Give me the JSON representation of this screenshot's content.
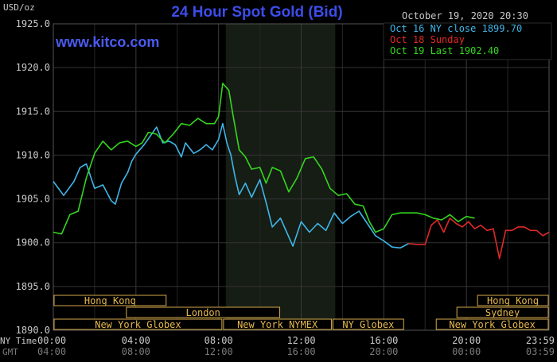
{
  "chart_data": {
    "type": "line",
    "title": "24 Hour Spot Gold (Bid)",
    "watermark": "www.kitco.com",
    "y_unit_label": "USD/oz",
    "date_label": "October 19, 2020 20:30",
    "ylim": [
      1890,
      1925
    ],
    "y_ticks": [
      "1925.0",
      "1920.0",
      "1915.0",
      "1910.0",
      "1905.0",
      "1900.0",
      "1895.0",
      "1890.0"
    ],
    "y_tick_values": [
      1925,
      1920,
      1915,
      1910,
      1905,
      1900,
      1895,
      1890
    ],
    "x_range_hours": [
      0,
      24
    ],
    "x_ticks_ny": [
      "00:00",
      "04:00",
      "08:00",
      "12:00",
      "16:00",
      "20:00",
      "23:59"
    ],
    "x_ticks_gmt": [
      "04:00",
      "08:00",
      "12:00",
      "16:00",
      "20:00",
      "00:00",
      "03:59"
    ],
    "x_tick_hours": [
      0,
      4,
      8,
      12,
      16,
      20,
      24
    ],
    "ny_time_label": "NY Time",
    "gmt_label": "GMT",
    "grid": true,
    "legend_position": "top-right",
    "highlight_hours": [
      8.35,
      13.65
    ],
    "sessions": [
      {
        "label": "Hong Kong",
        "start_hour": 0,
        "end_hour": 5.5,
        "row": 1
      },
      {
        "label": "London",
        "start_hour": 3.5,
        "end_hour": 11,
        "row": 2
      },
      {
        "label": "New York Globex",
        "start_hour": 0,
        "end_hour": 8.2,
        "row": 3
      },
      {
        "label": "New York NYMEX",
        "start_hour": 8.2,
        "end_hour": 13.5,
        "row": 3
      },
      {
        "label": "NY Globex",
        "start_hour": 13.5,
        "end_hour": 17,
        "row": 3
      },
      {
        "label": "Sydney",
        "start_hour": 19.5,
        "end_hour": 24,
        "row": 2
      },
      {
        "label": "Hong Kong",
        "start_hour": 20.5,
        "end_hour": 24,
        "row": 1
      },
      {
        "label": "New York Globex",
        "start_hour": 18.5,
        "end_hour": 24,
        "row": 3
      }
    ],
    "series": [
      {
        "name": "Oct 16 NY close 1899.70",
        "color": "#3fb6e8",
        "x": [
          0,
          0.5,
          1,
          1.3,
          1.6,
          1.8,
          2,
          2.4,
          2.8,
          3,
          3.3,
          3.6,
          3.8,
          4,
          4.4,
          4.7,
          5,
          5.3,
          5.6,
          5.9,
          6.2,
          6.4,
          6.8,
          7.1,
          7.4,
          7.7,
          8,
          8.2,
          8.4,
          8.6,
          8.8,
          9,
          9.3,
          9.6,
          10,
          10.3,
          10.6,
          11,
          11.3,
          11.6,
          12,
          12.4,
          12.8,
          13.2,
          13.6,
          14,
          14.4,
          14.8,
          15.2,
          15.6,
          16,
          16.4,
          16.8,
          17.2
        ],
        "y": [
          1907,
          1905.4,
          1907,
          1908.6,
          1909,
          1907.6,
          1906.2,
          1906.6,
          1904.8,
          1904.4,
          1906.8,
          1908,
          1909.3,
          1910.1,
          1911.2,
          1912.2,
          1913.2,
          1911.4,
          1911.6,
          1911.2,
          1909.8,
          1911.4,
          1910.2,
          1910.6,
          1911.2,
          1910.6,
          1911.8,
          1913.6,
          1911.4,
          1910,
          1907.5,
          1905.5,
          1906.8,
          1905.2,
          1907.2,
          1904.6,
          1901.8,
          1902.8,
          1901.2,
          1899.6,
          1902.4,
          1901.2,
          1902.2,
          1901.4,
          1903.4,
          1902.2,
          1903,
          1903.6,
          1902.2,
          1900.8,
          1900.2,
          1899.5,
          1899.4,
          1899.9
        ]
      },
      {
        "name": "Oct 18 Sunday",
        "color": "#e02a26",
        "x": [
          17.2,
          17.6,
          18,
          18.3,
          18.6,
          18.9,
          19.2,
          19.5,
          19.8,
          20.1,
          20.4,
          20.7,
          21,
          21.3,
          21.6,
          21.9,
          22.2,
          22.5,
          22.8,
          23.1,
          23.4,
          23.7,
          24
        ],
        "y": [
          1899.9,
          1899.8,
          1899.8,
          1902,
          1902.6,
          1901.2,
          1902.8,
          1902.2,
          1901.8,
          1902.4,
          1901.6,
          1902,
          1901.4,
          1901.6,
          1898.2,
          1901.4,
          1901.4,
          1901.8,
          1901.8,
          1901.4,
          1901.4,
          1900.8,
          1901.2
        ]
      },
      {
        "name": "Oct 19 Last 1902.40",
        "color": "#34d61f",
        "x": [
          0,
          0.4,
          0.8,
          1.2,
          1.6,
          2,
          2.4,
          2.8,
          3.2,
          3.6,
          4,
          4.3,
          4.6,
          5,
          5.4,
          5.8,
          6.2,
          6.6,
          7,
          7.4,
          7.8,
          8,
          8.2,
          8.5,
          8.7,
          9,
          9.3,
          9.6,
          10,
          10.3,
          10.6,
          11,
          11.4,
          11.8,
          12.2,
          12.6,
          13,
          13.4,
          13.8,
          14.2,
          14.6,
          15,
          15.3,
          15.6,
          16,
          16.4,
          16.8,
          17.2,
          17.6,
          18,
          18.4,
          18.8,
          19.2,
          19.6,
          20,
          20.4
        ],
        "y": [
          1901.2,
          1901,
          1903.2,
          1903.6,
          1907.4,
          1910.2,
          1911.6,
          1910.6,
          1911.4,
          1911.6,
          1911,
          1911.4,
          1912.6,
          1912.4,
          1911.4,
          1912.4,
          1913.6,
          1913.4,
          1914.2,
          1913.6,
          1913.6,
          1914.4,
          1918.2,
          1917.4,
          1914.6,
          1910.6,
          1909.8,
          1908.4,
          1908.6,
          1906.8,
          1908.6,
          1908.2,
          1905.8,
          1907.4,
          1909.6,
          1909.8,
          1908.4,
          1906.2,
          1905.4,
          1905.6,
          1904.4,
          1904.2,
          1902.4,
          1901.2,
          1901.6,
          1903.2,
          1903.4,
          1903.4,
          1903.4,
          1903.2,
          1902.8,
          1902.6,
          1903.2,
          1902.4,
          1903,
          1902.8
        ]
      }
    ]
  }
}
